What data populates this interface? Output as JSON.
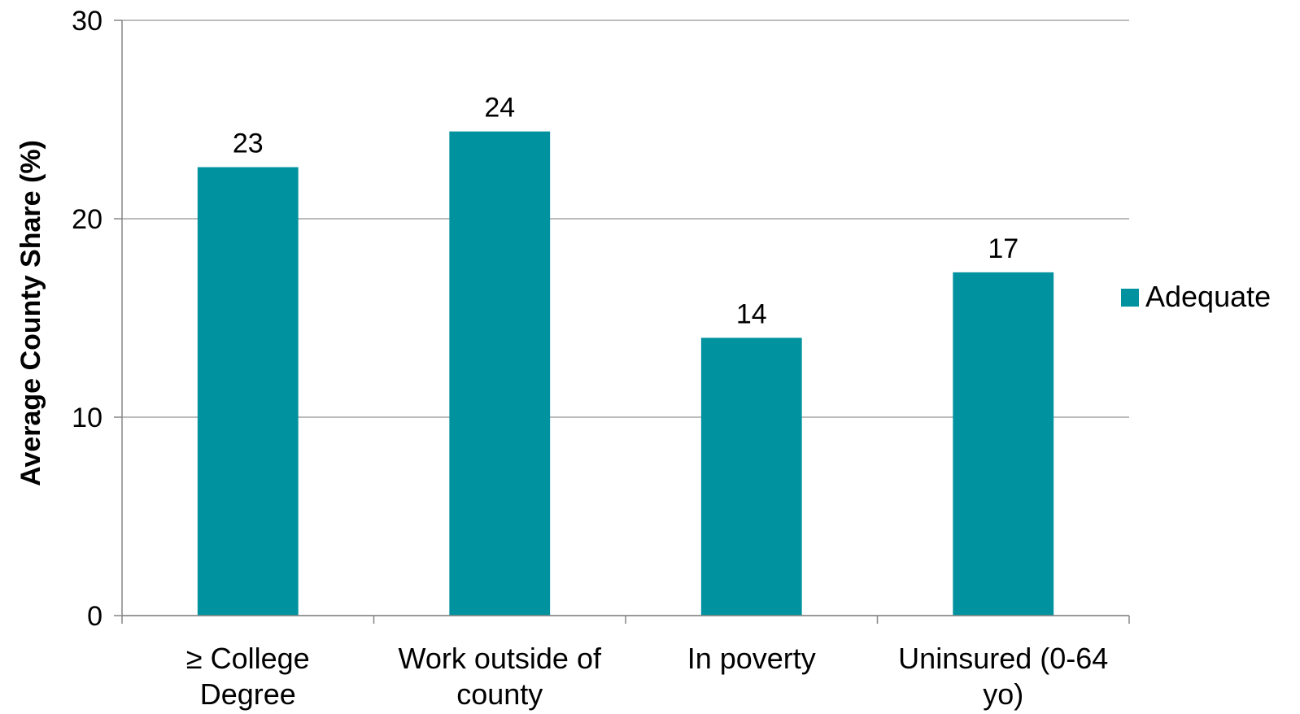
{
  "chart_data": {
    "type": "bar",
    "categories": [
      [
        "≥ College",
        "Degree"
      ],
      [
        "Work outside of",
        "county"
      ],
      [
        "In poverty"
      ],
      [
        "Uninsured (0-64",
        "yo)"
      ]
    ],
    "series": [
      {
        "name": "Adequate",
        "values": [
          22.6,
          24.4,
          14.0,
          17.3
        ],
        "labels": [
          "23",
          "24",
          "14",
          "17"
        ],
        "color": "#00929f"
      }
    ],
    "ylabel": "Average County Share (%)",
    "ylim": [
      0,
      30
    ],
    "yticks": [
      0,
      10,
      20,
      30
    ],
    "grid": true,
    "legend": "right"
  }
}
